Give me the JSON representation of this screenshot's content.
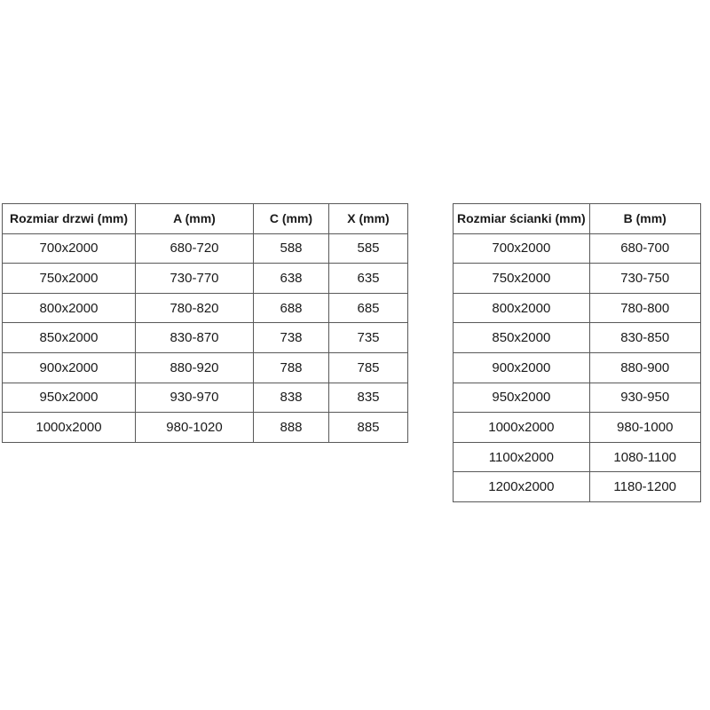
{
  "colors": {
    "background": "#ffffff",
    "table_border": "#595959",
    "text": "#1a1a1a"
  },
  "tables": [
    {
      "name": "door-size-table",
      "headers": [
        "Rozmiar drzwi (mm)",
        "A (mm)",
        "C (mm)",
        "X (mm)"
      ],
      "rows": [
        [
          "700x2000",
          "680-720",
          "588",
          "585"
        ],
        [
          "750x2000",
          "730-770",
          "638",
          "635"
        ],
        [
          "800x2000",
          "780-820",
          "688",
          "685"
        ],
        [
          "850x2000",
          "830-870",
          "738",
          "735"
        ],
        [
          "900x2000",
          "880-920",
          "788",
          "785"
        ],
        [
          "950x2000",
          "930-970",
          "838",
          "835"
        ],
        [
          "1000x2000",
          "980-1020",
          "888",
          "885"
        ]
      ]
    },
    {
      "name": "wall-size-table",
      "headers": [
        "Rozmiar ścianki (mm)",
        "B (mm)"
      ],
      "rows": [
        [
          "700x2000",
          "680-700"
        ],
        [
          "750x2000",
          "730-750"
        ],
        [
          "800x2000",
          "780-800"
        ],
        [
          "850x2000",
          "830-850"
        ],
        [
          "900x2000",
          "880-900"
        ],
        [
          "950x2000",
          "930-950"
        ],
        [
          "1000x2000",
          "980-1000"
        ],
        [
          "1100x2000",
          "1080-1100"
        ],
        [
          "1200x2000",
          "1180-1200"
        ]
      ]
    }
  ]
}
